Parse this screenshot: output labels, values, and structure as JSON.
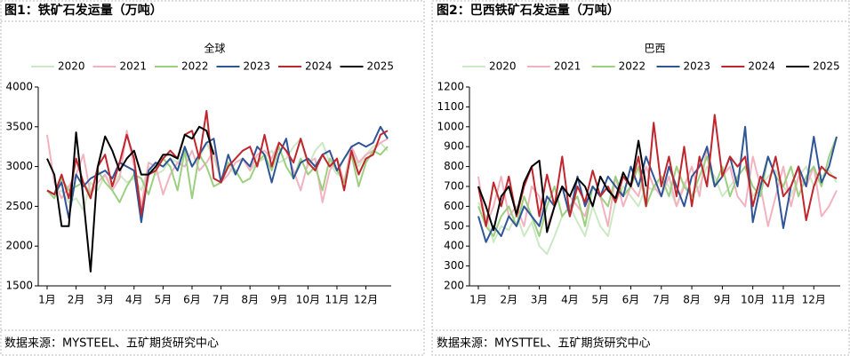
{
  "chart_data": [
    {
      "type": "line",
      "heading": "图1：铁矿石发运量（万吨）",
      "title": "全球",
      "source": "数据来源：MYSTEEL、五矿期货研究中心",
      "categories": [
        "1月",
        null,
        null,
        null,
        "2月",
        null,
        null,
        null,
        "3月",
        null,
        null,
        null,
        "4月",
        null,
        null,
        null,
        "5月",
        null,
        null,
        null,
        "6月",
        null,
        null,
        null,
        "7月",
        null,
        null,
        null,
        "8月",
        null,
        null,
        null,
        "9月",
        null,
        null,
        null,
        "10月",
        null,
        null,
        null,
        "11月",
        null,
        null,
        null,
        "12月",
        null,
        null,
        null
      ],
      "ylim": [
        1500,
        4000
      ],
      "yticks": [
        1500,
        2000,
        2500,
        3000,
        3500,
        4000
      ],
      "series": [
        {
          "name": "2020",
          "color": "#cde8c4",
          "values": [
            2700,
            2650,
            2700,
            2550,
            2600,
            2450,
            2800,
            2700,
            2900,
            2750,
            2900,
            2800,
            2850,
            2700,
            3000,
            2900,
            2950,
            3100,
            3050,
            3200,
            3000,
            3100,
            3300,
            3100,
            2850,
            3000,
            2900,
            3100,
            2950,
            3050,
            3100,
            3200,
            3050,
            3100,
            3250,
            3350,
            3000,
            3200,
            3300,
            3050,
            2900,
            3100,
            3200,
            3000,
            3150,
            3250,
            3300,
            3200
          ]
        },
        {
          "name": "2021",
          "color": "#f2b3c0",
          "values": [
            3400,
            2800,
            2600,
            2750,
            2900,
            3150,
            2650,
            2800,
            2900,
            2700,
            2850,
            3450,
            3000,
            2500,
            3050,
            3000,
            2650,
            2900,
            3050,
            3000,
            3200,
            2950,
            3050,
            3200,
            2800,
            2900,
            3050,
            3100,
            2950,
            3150,
            3200,
            3100,
            3300,
            3200,
            2950,
            2700,
            3050,
            3100,
            2550,
            2950,
            3100,
            2800,
            3250,
            3050,
            3150,
            3200,
            3300,
            3350
          ]
        },
        {
          "name": "2022",
          "color": "#9ccf80",
          "values": [
            2700,
            2600,
            2850,
            2700,
            2750,
            2800,
            2650,
            2950,
            2800,
            2700,
            2550,
            2750,
            2900,
            2850,
            2650,
            2950,
            3100,
            3000,
            2700,
            3200,
            2600,
            3150,
            3000,
            2750,
            2800,
            3050,
            2950,
            2800,
            2850,
            3050,
            3150,
            2950,
            3250,
            3000,
            2850,
            3100,
            2900,
            3000,
            2700,
            3100,
            2950,
            2800,
            3150,
            2750,
            3050,
            3200,
            3150,
            3250
          ]
        },
        {
          "name": "2023",
          "color": "#2f5597",
          "values": [
            2700,
            2650,
            2800,
            2350,
            2900,
            2750,
            2850,
            2900,
            2950,
            2850,
            3050,
            3000,
            2950,
            2300,
            2950,
            3050,
            3000,
            3100,
            2950,
            3250,
            3000,
            3150,
            3300,
            3350,
            2800,
            3150,
            2900,
            3100,
            3000,
            3250,
            3150,
            2800,
            3150,
            3350,
            2850,
            3050,
            3100,
            3000,
            3150,
            3200,
            2950,
            3100,
            3250,
            3300,
            3250,
            3300,
            3500,
            3350
          ]
        },
        {
          "name": "2024",
          "color": "#c0262d",
          "values": [
            2700,
            2650,
            2900,
            2600,
            3100,
            2800,
            2600,
            3000,
            3150,
            2750,
            3050,
            3400,
            3100,
            2400,
            2900,
            2950,
            3100,
            3200,
            3100,
            3400,
            3450,
            3100,
            3700,
            2850,
            2800,
            3000,
            3100,
            3200,
            3250,
            3000,
            3400,
            3000,
            3300,
            3200,
            3050,
            3350,
            3050,
            2950,
            3150,
            3000,
            3100,
            2700,
            3200,
            2900,
            3100,
            3150,
            3400,
            3450
          ]
        },
        {
          "name": "2025",
          "color": "#000000",
          "values": [
            3100,
            2900,
            2250,
            2250,
            3430,
            2600,
            1680,
            3000,
            3380,
            3200,
            2950,
            3100,
            3200,
            2900,
            2900,
            3000,
            3150,
            3150,
            3100,
            3400,
            3350,
            3500,
            3450,
            3150,
            null,
            null,
            null,
            null,
            null,
            null,
            null,
            null,
            null,
            null,
            null,
            null,
            null,
            null,
            null,
            null,
            null,
            null,
            null,
            null,
            null,
            null,
            null,
            null
          ]
        }
      ]
    },
    {
      "type": "line",
      "heading": "图2：巴西铁矿石发运量（万吨）",
      "title": "巴西",
      "source": "数据来源：MYSTTEL、五矿期货研究中心",
      "categories": [
        "1月",
        null,
        null,
        null,
        "2月",
        null,
        null,
        null,
        "3月",
        null,
        null,
        null,
        "4月",
        null,
        null,
        null,
        "5月",
        null,
        null,
        null,
        "6月",
        null,
        null,
        null,
        "7月",
        null,
        null,
        null,
        "8月",
        null,
        null,
        null,
        "9月",
        null,
        null,
        null,
        "10月",
        null,
        null,
        null,
        "11月",
        null,
        null,
        null,
        "12月",
        null,
        null,
        null
      ],
      "ylim": [
        200,
        1200
      ],
      "yticks": [
        200,
        300,
        400,
        500,
        600,
        700,
        800,
        900,
        1000,
        1100,
        1200
      ],
      "series": [
        {
          "name": "2020",
          "color": "#cde8c4",
          "values": [
            620,
            550,
            420,
            500,
            480,
            560,
            450,
            520,
            400,
            360,
            450,
            550,
            600,
            520,
            450,
            600,
            500,
            450,
            620,
            700,
            650,
            600,
            700,
            680,
            750,
            700,
            600,
            720,
            650,
            700,
            800,
            750,
            650,
            700,
            750,
            800,
            650,
            700,
            750,
            780,
            700,
            650,
            750,
            800,
            700,
            750,
            780,
            720
          ]
        },
        {
          "name": "2021",
          "color": "#f2b3c0",
          "values": [
            750,
            500,
            600,
            750,
            550,
            600,
            500,
            700,
            650,
            500,
            600,
            700,
            650,
            600,
            550,
            700,
            650,
            500,
            750,
            600,
            700,
            650,
            800,
            700,
            650,
            750,
            600,
            700,
            800,
            650,
            900,
            700,
            750,
            800,
            650,
            600,
            850,
            700,
            500,
            650,
            800,
            600,
            750,
            700,
            800,
            550,
            600,
            680
          ]
        },
        {
          "name": "2022",
          "color": "#9ccf80",
          "values": [
            600,
            500,
            450,
            550,
            600,
            500,
            650,
            550,
            450,
            600,
            700,
            550,
            600,
            650,
            500,
            700,
            650,
            600,
            750,
            650,
            700,
            800,
            600,
            700,
            750,
            650,
            800,
            700,
            650,
            750,
            850,
            700,
            800,
            650,
            750,
            800,
            700,
            650,
            850,
            750,
            700,
            800,
            650,
            750,
            800,
            700,
            850,
            950
          ]
        },
        {
          "name": "2023",
          "color": "#2f5597",
          "values": [
            550,
            420,
            500,
            450,
            550,
            500,
            600,
            550,
            500,
            650,
            600,
            700,
            550,
            750,
            600,
            700,
            650,
            750,
            700,
            650,
            800,
            700,
            850,
            750,
            650,
            800,
            700,
            600,
            750,
            800,
            900,
            700,
            750,
            850,
            700,
            1000,
            520,
            700,
            850,
            750,
            490,
            700,
            800,
            700,
            950,
            720,
            800,
            950
          ]
        },
        {
          "name": "2024",
          "color": "#c0262d",
          "values": [
            700,
            500,
            720,
            600,
            750,
            550,
            700,
            800,
            550,
            760,
            600,
            850,
            550,
            700,
            620,
            780,
            650,
            700,
            620,
            750,
            700,
            850,
            600,
            1020,
            700,
            850,
            650,
            900,
            600,
            850,
            700,
            1060,
            750,
            850,
            800,
            850,
            600,
            750,
            700,
            850,
            650,
            700,
            800,
            530,
            700,
            800,
            760,
            740
          ]
        },
        {
          "name": "2025",
          "color": "#000000",
          "values": [
            700,
            600,
            480,
            650,
            700,
            560,
            720,
            800,
            830,
            470,
            600,
            700,
            650,
            740,
            700,
            600,
            750,
            680,
            640,
            770,
            700,
            930,
            700,
            null,
            null,
            null,
            null,
            null,
            null,
            null,
            null,
            null,
            null,
            null,
            null,
            null,
            null,
            null,
            null,
            null,
            null,
            null,
            null,
            null,
            null,
            null,
            null,
            null
          ]
        }
      ]
    }
  ]
}
